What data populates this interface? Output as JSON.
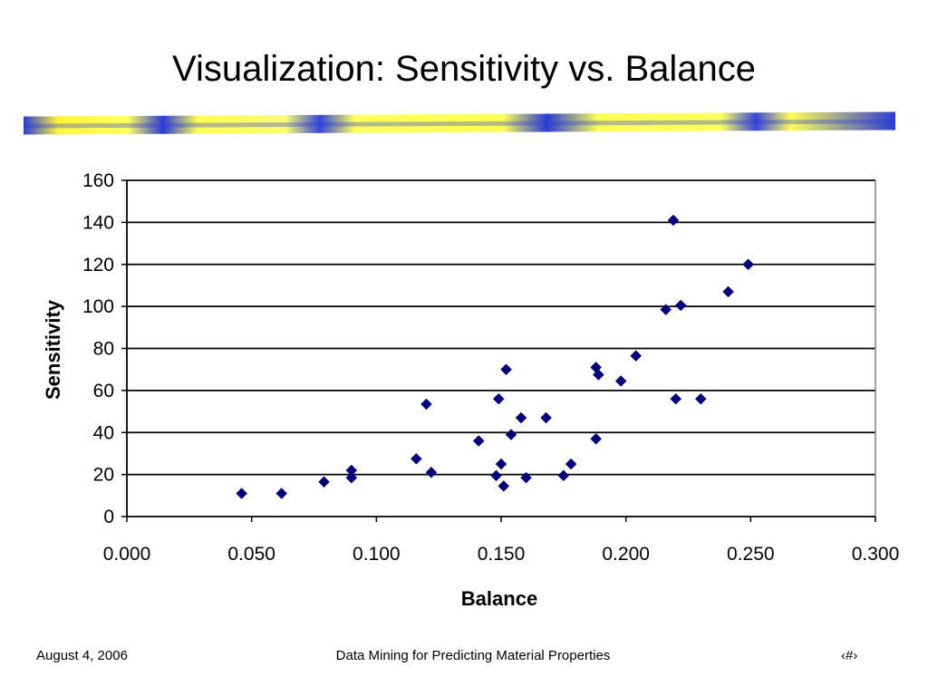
{
  "slide": {
    "title": "Visualization: Sensitivity vs. Balance",
    "title_bar_colors": [
      "#2b3bd6",
      "#ffff55"
    ]
  },
  "footer": {
    "date": "August 4, 2006",
    "center": "Data Mining for Predicting Material Properties",
    "page": "‹#›"
  },
  "chart_data": {
    "type": "scatter",
    "title": "",
    "xlabel": "Balance",
    "ylabel": "Sensitivity",
    "xlim": [
      0,
      0.3
    ],
    "ylim": [
      0,
      160
    ],
    "x_ticks": [
      "0.000",
      "0.050",
      "0.100",
      "0.150",
      "0.200",
      "0.250",
      "0.300"
    ],
    "y_ticks": [
      "0",
      "20",
      "40",
      "60",
      "80",
      "100",
      "120",
      "140",
      "160"
    ],
    "grid": "horizontal",
    "marker": "diamond",
    "marker_color": "#00007f",
    "series": [
      {
        "points": [
          [
            0.046,
            11
          ],
          [
            0.062,
            11
          ],
          [
            0.079,
            16.5
          ],
          [
            0.09,
            22
          ],
          [
            0.09,
            18.5
          ],
          [
            0.116,
            27.5
          ],
          [
            0.12,
            53.5
          ],
          [
            0.122,
            21
          ],
          [
            0.141,
            36
          ],
          [
            0.148,
            19.5
          ],
          [
            0.149,
            56
          ],
          [
            0.15,
            25
          ],
          [
            0.151,
            14.5
          ],
          [
            0.152,
            70
          ],
          [
            0.154,
            39
          ],
          [
            0.158,
            47
          ],
          [
            0.16,
            18.5
          ],
          [
            0.168,
            47
          ],
          [
            0.175,
            19.5
          ],
          [
            0.178,
            25
          ],
          [
            0.188,
            37
          ],
          [
            0.188,
            71
          ],
          [
            0.189,
            67.5
          ],
          [
            0.198,
            64.5
          ],
          [
            0.204,
            76.5
          ],
          [
            0.216,
            98.5
          ],
          [
            0.219,
            141
          ],
          [
            0.22,
            56
          ],
          [
            0.222,
            100.5
          ],
          [
            0.23,
            56
          ],
          [
            0.241,
            107
          ],
          [
            0.249,
            120
          ]
        ]
      }
    ]
  }
}
